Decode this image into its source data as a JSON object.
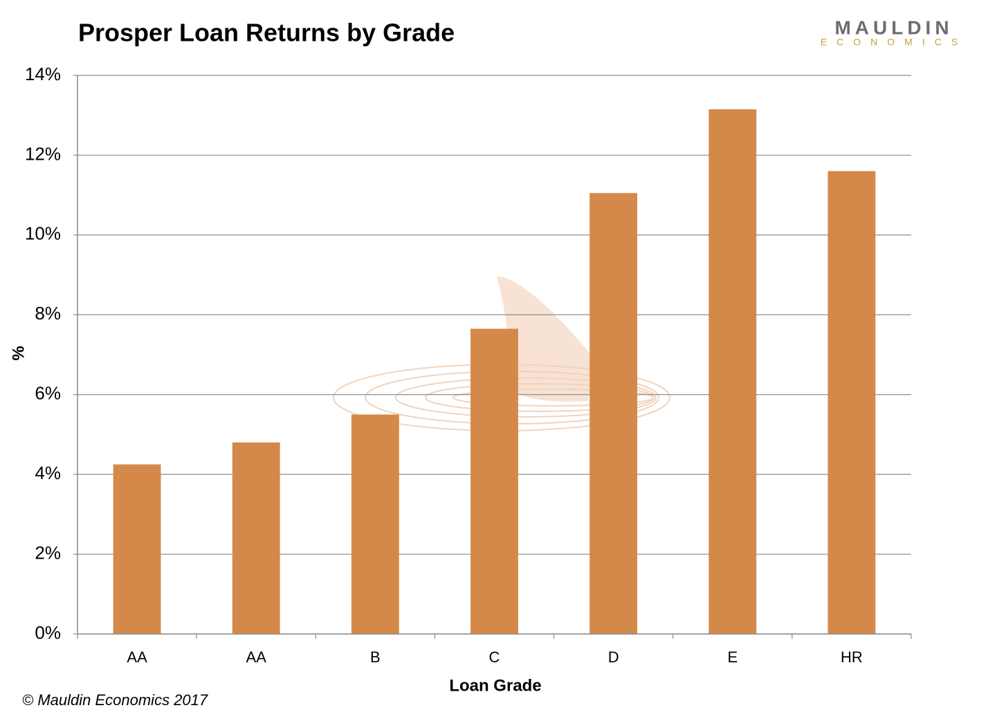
{
  "chart_data": {
    "type": "bar",
    "title": "Prosper Loan Returns by Grade",
    "x_label": "Loan Grade",
    "y_label": "%",
    "categories": [
      "AA",
      "AA",
      "B",
      "C",
      "D",
      "E",
      "HR"
    ],
    "values": [
      4.25,
      4.8,
      5.5,
      7.65,
      11.05,
      13.15,
      11.6
    ],
    "color": "#d4894a",
    "ylim": [
      0,
      14
    ],
    "yticks": [
      {
        "value": 0,
        "label": "0%"
      },
      {
        "value": 2,
        "label": "2%"
      },
      {
        "value": 4,
        "label": "4%"
      },
      {
        "value": 6,
        "label": "6%"
      },
      {
        "value": 8,
        "label": "8%"
      },
      {
        "value": 10,
        "label": "10%"
      },
      {
        "value": 12,
        "label": "12%"
      },
      {
        "value": 14,
        "label": "14%"
      }
    ],
    "grid": true,
    "source": "© Mauldin Economics 2017"
  },
  "logo": {
    "name": "MAULDIN",
    "subtitle": "ECONOMICS"
  }
}
